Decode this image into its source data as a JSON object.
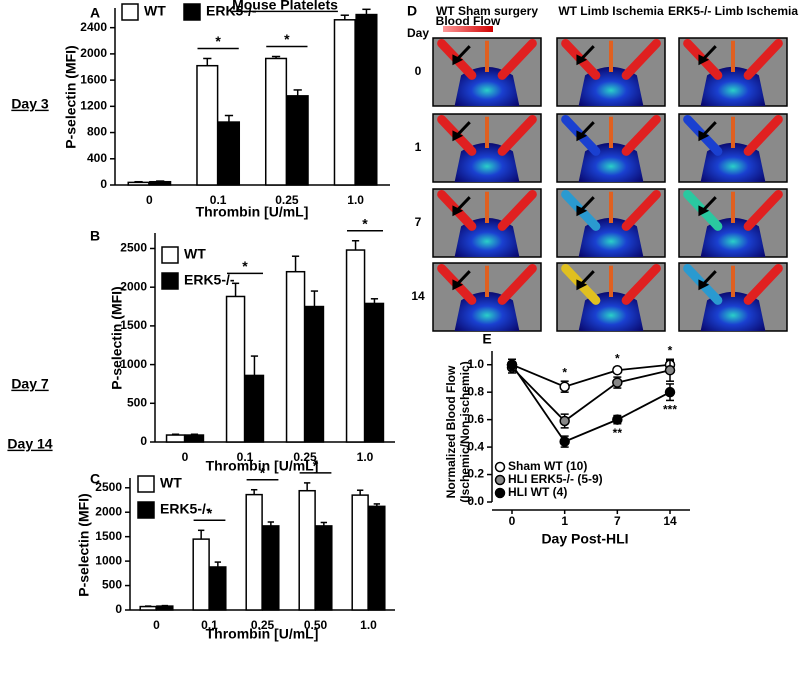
{
  "chart_data": [
    {
      "type": "bar",
      "panel_label": "A",
      "row_label": "Day 3",
      "title": "Mouse Platelets",
      "y_label": "P-selectin (MFI)",
      "x_label": "Thrombin  [U/mL]",
      "categories": [
        "0",
        "0.1",
        "0.25",
        "1.0"
      ],
      "series": [
        {
          "name": "WT",
          "color": "#ffffff",
          "values": [
            40,
            1820,
            1930,
            2520
          ],
          "errors": [
            10,
            110,
            30,
            70
          ]
        },
        {
          "name": "ERK5-/-",
          "color": "#000000",
          "values": [
            50,
            960,
            1360,
            2600
          ],
          "errors": [
            10,
            100,
            90,
            80
          ]
        }
      ],
      "significance": [
        null,
        "*",
        "*",
        null
      ],
      "ylim": [
        0,
        2700
      ],
      "yticks": [
        0,
        400,
        800,
        1200,
        1600,
        2000,
        2400
      ],
      "legend": "top"
    },
    {
      "type": "bar",
      "panel_label": "B",
      "row_label": "Day 7",
      "y_label": "P-selectin (MFI)",
      "x_label": "Thrombin  [U/mL]",
      "categories": [
        "0",
        "0.1",
        "0.25",
        "1.0"
      ],
      "series": [
        {
          "name": "WT",
          "color": "#ffffff",
          "values": [
            90,
            1880,
            2200,
            2480
          ],
          "errors": [
            10,
            170,
            200,
            120
          ]
        },
        {
          "name": "ERK5-/-",
          "color": "#000000",
          "values": [
            90,
            860,
            1750,
            1790
          ],
          "errors": [
            10,
            250,
            200,
            60
          ]
        }
      ],
      "significance": [
        null,
        "*",
        null,
        "*"
      ],
      "ylim": [
        0,
        2700
      ],
      "yticks": [
        0,
        500,
        1000,
        1500,
        2000,
        2500
      ],
      "legend": "upper left"
    },
    {
      "type": "bar",
      "panel_label": "C",
      "row_label": "Day 14",
      "y_label": "P-selectin (MFI)",
      "x_label": "Thrombin  [U/mL]",
      "categories": [
        "0",
        "0.1",
        "0.25",
        "0.50",
        "1.0"
      ],
      "series": [
        {
          "name": "WT",
          "color": "#ffffff",
          "values": [
            70,
            1450,
            2360,
            2440,
            2350
          ],
          "errors": [
            10,
            180,
            100,
            160,
            100
          ]
        },
        {
          "name": "ERK5-/-",
          "color": "#000000",
          "values": [
            80,
            880,
            1720,
            1720,
            2120
          ],
          "errors": [
            10,
            100,
            80,
            70,
            50
          ]
        }
      ],
      "significance": [
        null,
        "*",
        "*",
        "*",
        null
      ],
      "ylim": [
        0,
        2700
      ],
      "yticks": [
        0,
        500,
        1000,
        1500,
        2000,
        2500
      ],
      "legend": "upper left"
    },
    {
      "type": "line",
      "panel_label": "E",
      "y_label": [
        "Normalized Blood Flow",
        "(Ischemic/Non-ischemic)"
      ],
      "x_label": "Day Post-HLI",
      "categories": [
        "0",
        "1",
        "7",
        "14"
      ],
      "series": [
        {
          "name": "Sham WT (10)",
          "color": "#ffffff",
          "values": [
            1.0,
            0.84,
            0.96,
            1.0
          ],
          "errors": [
            0.04,
            0.04,
            0.02,
            0.03
          ]
        },
        {
          "name": "HLI ERK5-/- (5-9)",
          "color": "#888888",
          "values": [
            0.98,
            0.59,
            0.87,
            0.96
          ],
          "errors": [
            0.04,
            0.05,
            0.04,
            0.08
          ]
        },
        {
          "name": "HLI WT  (4)",
          "color": "#000000",
          "values": [
            1.0,
            0.44,
            0.6,
            0.8
          ],
          "errors": [
            0.04,
            0.04,
            0.03,
            0.06
          ]
        }
      ],
      "upper_marks": [
        null,
        "*",
        "*",
        "*"
      ],
      "lower_marks": [
        null,
        null,
        "**",
        "***"
      ],
      "ylim": [
        0,
        1.1
      ],
      "yticks": [
        {
          "value": 0,
          "label": "0.0"
        },
        {
          "value": 0.2,
          "label": "0.2"
        },
        {
          "value": 0.4,
          "label": "0.4"
        },
        {
          "value": 0.6,
          "label": "0.6"
        },
        {
          "value": 0.8,
          "label": "0.8"
        },
        {
          "value": 1.0,
          "label": "1.0"
        }
      ],
      "legend": "lower left"
    }
  ],
  "image_panel": {
    "label": "D",
    "day_label": "Day",
    "blood_flow_label": "Blood Flow",
    "columns": [
      "WT Sham surgery",
      "WT Limb Ischemia",
      "ERK5-/- Limb Ischemia"
    ],
    "days": [
      "0",
      "1",
      "7",
      "14"
    ]
  }
}
